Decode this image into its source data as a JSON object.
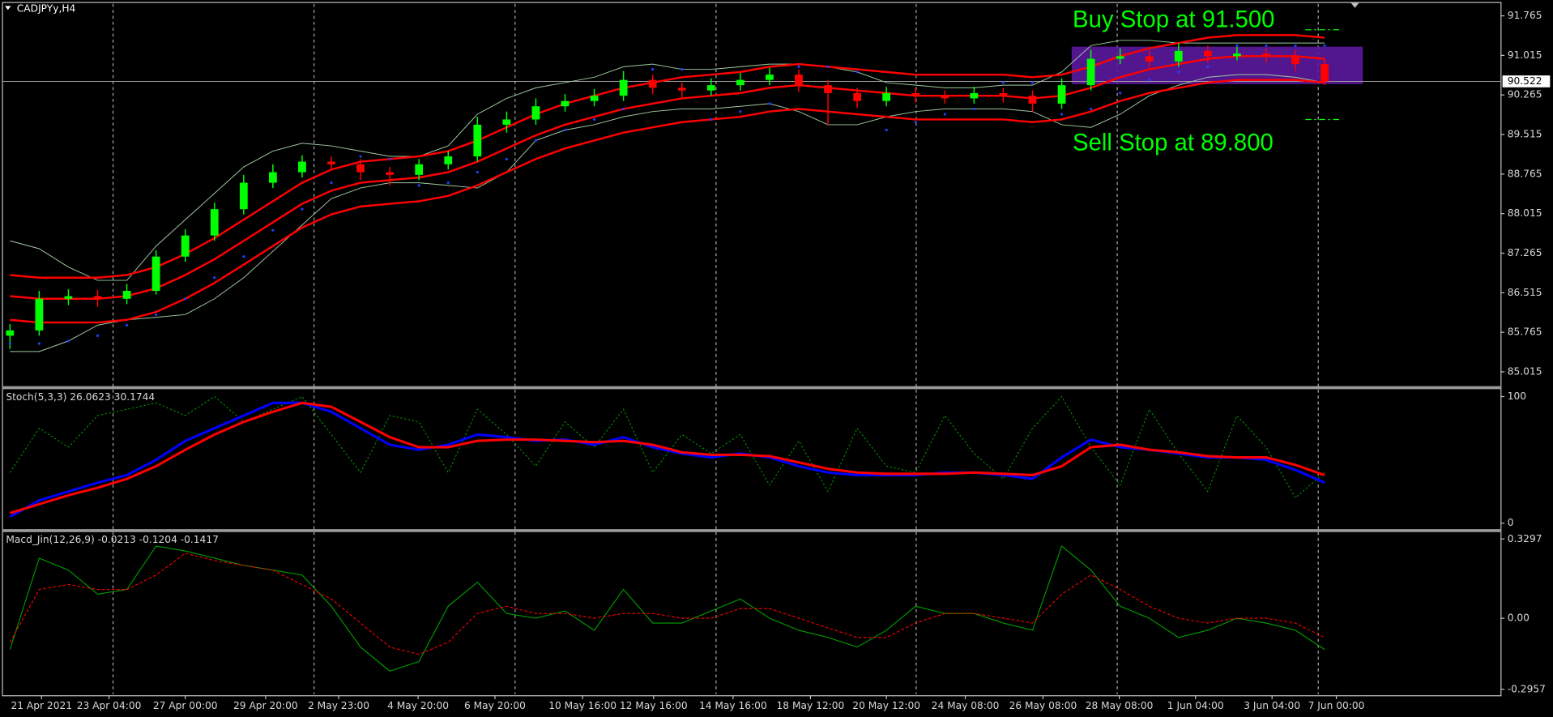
{
  "chart_data": [
    {
      "type": "candlestick",
      "title": "CADJPYy,H4",
      "xlim": [
        -0.24,
        51.02
      ],
      "ylim": [
        84.752,
        92.009
      ],
      "yticks": [
        91.765,
        91.015,
        90.265,
        89.515,
        88.765,
        88.015,
        87.265,
        86.515,
        85.765,
        85.015
      ],
      "up_color": "#00ff00",
      "down_color": "#ff0000",
      "open": [
        85.7,
        85.8,
        86.4,
        86.45,
        86.4,
        86.55,
        87.2,
        87.6,
        88.1,
        88.6,
        88.8,
        89.0,
        88.95,
        88.8,
        88.75,
        88.95,
        89.1,
        89.7,
        89.8,
        90.05,
        90.15,
        90.25,
        90.55,
        90.4,
        90.35,
        90.45,
        90.55,
        90.65,
        90.45,
        90.3,
        90.15,
        90.3,
        90.25,
        90.2,
        90.3,
        90.25,
        90.1,
        90.45,
        90.95,
        91.0,
        90.9,
        91.1,
        91.0,
        91.05,
        91.0,
        90.85
      ],
      "high": [
        85.92,
        86.55,
        86.58,
        86.57,
        86.68,
        87.32,
        87.72,
        88.22,
        88.75,
        88.95,
        89.12,
        89.1,
        89.05,
        88.9,
        89.05,
        89.2,
        89.85,
        89.95,
        90.2,
        90.28,
        90.38,
        90.72,
        90.65,
        90.5,
        90.58,
        90.68,
        90.78,
        90.75,
        90.55,
        90.4,
        90.42,
        90.4,
        90.35,
        90.42,
        90.4,
        90.35,
        90.58,
        91.12,
        91.15,
        91.1,
        91.25,
        91.2,
        91.18,
        91.15,
        91.12,
        90.95
      ],
      "low": [
        85.45,
        85.7,
        86.28,
        86.25,
        86.3,
        86.48,
        87.1,
        87.5,
        88.0,
        88.5,
        88.7,
        88.85,
        88.65,
        88.55,
        88.65,
        88.85,
        89.0,
        89.55,
        89.7,
        89.95,
        90.05,
        90.15,
        90.28,
        90.22,
        90.25,
        90.35,
        90.45,
        90.32,
        89.7,
        90.02,
        90.05,
        90.12,
        90.1,
        90.1,
        90.12,
        89.95,
        90.0,
        90.35,
        90.85,
        90.78,
        90.8,
        90.88,
        90.92,
        90.88,
        90.72,
        90.45
      ],
      "close": [
        85.8,
        86.4,
        86.45,
        86.4,
        86.55,
        87.2,
        87.6,
        88.1,
        88.6,
        88.8,
        89.0,
        88.95,
        88.8,
        88.75,
        88.95,
        89.1,
        89.7,
        89.8,
        90.05,
        90.15,
        90.25,
        90.55,
        90.4,
        90.35,
        90.45,
        90.55,
        90.65,
        90.45,
        90.3,
        90.15,
        90.3,
        90.25,
        90.2,
        90.3,
        90.25,
        90.1,
        90.45,
        90.95,
        91.0,
        90.9,
        91.1,
        91.0,
        91.05,
        91.0,
        90.85,
        90.52
      ],
      "overlays": [
        {
          "color": "#a0c8a0",
          "width": 0.8,
          "values": [
            87.5,
            87.35,
            87.0,
            86.75,
            86.75,
            87.4,
            87.9,
            88.4,
            88.9,
            89.2,
            89.35,
            89.3,
            89.2,
            89.1,
            89.1,
            89.3,
            89.9,
            90.2,
            90.4,
            90.5,
            90.6,
            90.8,
            90.85,
            90.75,
            90.75,
            90.8,
            90.85,
            90.85,
            90.8,
            90.7,
            90.5,
            90.45,
            90.4,
            90.4,
            90.45,
            90.45,
            90.7,
            91.2,
            91.3,
            91.3,
            91.25,
            91.25,
            91.25,
            91.25,
            91.25,
            91.25
          ]
        },
        {
          "color": "#a0c8a0",
          "width": 0.8,
          "values": [
            85.4,
            85.4,
            85.6,
            85.9,
            86.0,
            86.05,
            86.1,
            86.4,
            86.8,
            87.3,
            87.8,
            88.3,
            88.5,
            88.6,
            88.6,
            88.55,
            88.5,
            88.8,
            89.4,
            89.6,
            89.7,
            89.85,
            89.95,
            90.0,
            90.0,
            90.05,
            90.1,
            89.95,
            89.7,
            89.7,
            89.85,
            89.95,
            90.0,
            90.0,
            90.0,
            89.95,
            89.7,
            89.65,
            89.9,
            90.25,
            90.45,
            90.6,
            90.65,
            90.65,
            90.6,
            90.5
          ]
        },
        {
          "color": "#ff0000",
          "width": 2,
          "values": [
            86.85,
            86.8,
            86.8,
            86.8,
            86.85,
            87.0,
            87.25,
            87.55,
            87.9,
            88.25,
            88.6,
            88.85,
            89.0,
            89.05,
            89.1,
            89.2,
            89.4,
            89.65,
            89.9,
            90.1,
            90.25,
            90.4,
            90.5,
            90.6,
            90.65,
            90.7,
            90.8,
            90.85,
            90.8,
            90.75,
            90.7,
            90.65,
            90.65,
            90.65,
            90.65,
            90.6,
            90.65,
            90.8,
            91.0,
            91.15,
            91.25,
            91.35,
            91.4,
            91.4,
            91.4,
            91.35
          ]
        },
        {
          "color": "#ff0000",
          "width": 2,
          "values": [
            86.45,
            86.4,
            86.4,
            86.4,
            86.45,
            86.6,
            86.85,
            87.15,
            87.5,
            87.85,
            88.2,
            88.45,
            88.6,
            88.65,
            88.7,
            88.8,
            89.0,
            89.25,
            89.5,
            89.7,
            89.85,
            90.0,
            90.1,
            90.2,
            90.25,
            90.3,
            90.4,
            90.45,
            90.4,
            90.35,
            90.3,
            90.25,
            90.25,
            90.25,
            90.25,
            90.2,
            90.25,
            90.4,
            90.6,
            90.75,
            90.85,
            90.95,
            91.0,
            91.0,
            91.0,
            90.95
          ]
        },
        {
          "color": "#ff0000",
          "width": 2,
          "values": [
            86.0,
            85.95,
            85.95,
            85.95,
            86.0,
            86.15,
            86.4,
            86.7,
            87.05,
            87.4,
            87.75,
            88.0,
            88.15,
            88.2,
            88.25,
            88.35,
            88.55,
            88.8,
            89.05,
            89.25,
            89.4,
            89.55,
            89.65,
            89.75,
            89.8,
            89.85,
            89.95,
            90.0,
            89.95,
            89.9,
            89.85,
            89.8,
            89.8,
            89.8,
            89.8,
            89.75,
            89.8,
            89.95,
            90.15,
            90.3,
            90.4,
            90.5,
            90.55,
            90.55,
            90.55,
            90.5
          ]
        }
      ],
      "psar": {
        "color": "#2040ff",
        "values": [
          85.55,
          85.55,
          85.6,
          85.7,
          85.9,
          86.1,
          86.4,
          86.8,
          87.2,
          87.7,
          88.1,
          88.6,
          89.1,
          89.05,
          88.55,
          88.6,
          88.8,
          89.05,
          89.4,
          89.6,
          89.8,
          90.0,
          90.75,
          90.75,
          89.8,
          89.95,
          90.1,
          90.8,
          90.8,
          90.7,
          89.6,
          89.75,
          89.9,
          90.0,
          90.5,
          90.5,
          89.9,
          90.0,
          90.3,
          90.55,
          90.7,
          90.8,
          91.2,
          91.2,
          91.2,
          91.2
        ]
      },
      "zone": [
        90.47,
        91.18
      ],
      "zone_color": "#5b1a9e",
      "last_price": 90.522,
      "annotations": [
        {
          "text": "Buy Stop at 91.500",
          "value": 91.5,
          "color": "#00ff00"
        },
        {
          "text": "Sell Stop at 89.800",
          "value": 89.8,
          "color": "#00ff00"
        }
      ]
    },
    {
      "type": "stochastic",
      "title": "Stoch(5,3,3) 26.0623 30.1744",
      "xlim": [
        -0.24,
        51.02
      ],
      "ylim": [
        -4.7,
        105.5
      ],
      "yticks": [
        100,
        0
      ],
      "series": [
        {
          "color": "#00a000",
          "style": "dotted",
          "values": [
            40,
            75,
            60,
            85,
            90,
            95,
            85,
            100,
            80,
            90,
            100,
            70,
            40,
            85,
            80,
            40,
            90,
            70,
            45,
            80,
            60,
            90,
            40,
            70,
            55,
            70,
            30,
            65,
            25,
            75,
            45,
            40,
            85,
            55,
            35,
            75,
            100,
            60,
            30,
            90,
            55,
            25,
            85,
            60,
            20,
            40
          ]
        },
        {
          "color": "#0000ff",
          "style": "solid",
          "values": [
            5,
            18,
            25,
            32,
            38,
            50,
            65,
            75,
            85,
            95,
            95,
            88,
            75,
            62,
            58,
            62,
            70,
            68,
            65,
            66,
            62,
            68,
            60,
            55,
            52,
            55,
            52,
            45,
            40,
            38,
            38,
            38,
            40,
            40,
            38,
            35,
            52,
            66,
            60,
            58,
            55,
            52,
            52,
            50,
            42,
            32
          ]
        },
        {
          "color": "#ff0000",
          "style": "solid",
          "values": [
            8,
            15,
            22,
            28,
            35,
            45,
            58,
            70,
            80,
            88,
            95,
            92,
            80,
            68,
            60,
            60,
            65,
            66,
            66,
            65,
            64,
            65,
            62,
            56,
            54,
            54,
            53,
            48,
            43,
            40,
            39,
            39,
            39,
            40,
            39,
            38,
            45,
            60,
            62,
            58,
            56,
            53,
            52,
            52,
            46,
            38
          ]
        }
      ]
    },
    {
      "type": "macd",
      "title": "Macd_Jin(12,26,9) -0.0213 -0.1204 -0.1417",
      "xlim": [
        -0.24,
        51.02
      ],
      "ylim": [
        -0.3204,
        0.3585
      ],
      "yticks": [
        0.3297,
        {
          "value": 0,
          "label": "0.00"
        },
        -0.2957
      ],
      "series": [
        {
          "color": "#00a000",
          "style": "solid",
          "values": [
            -0.13,
            0.25,
            0.2,
            0.1,
            0.12,
            0.3,
            0.28,
            0.25,
            0.22,
            0.2,
            0.18,
            0.05,
            -0.12,
            -0.22,
            -0.18,
            0.05,
            0.15,
            0.02,
            0,
            0.03,
            -0.05,
            0.12,
            -0.02,
            -0.02,
            0.03,
            0.08,
            0,
            -0.05,
            -0.08,
            -0.12,
            -0.05,
            0.05,
            0.02,
            0.02,
            -0.02,
            -0.05,
            0.3,
            0.2,
            0.05,
            0,
            -0.08,
            -0.05,
            0,
            -0.02,
            -0.05,
            -0.13
          ]
        },
        {
          "color": "#ff0000",
          "style": "dotted",
          "values": [
            -0.1,
            0.12,
            0.14,
            0.12,
            0.12,
            0.18,
            0.27,
            0.24,
            0.22,
            0.2,
            0.14,
            0.08,
            -0.02,
            -0.12,
            -0.15,
            -0.1,
            0.02,
            0.05,
            0.02,
            0.02,
            0,
            0.02,
            0.02,
            0,
            0,
            0.04,
            0.04,
            0,
            -0.04,
            -0.08,
            -0.08,
            -0.02,
            0.02,
            0.02,
            0,
            -0.02,
            0.1,
            0.18,
            0.12,
            0.05,
            0,
            -0.02,
            0,
            0,
            -0.02,
            -0.08
          ]
        }
      ],
      "xticks": [
        {
          "value": 1.08,
          "label": "21 Apr 2021"
        },
        {
          "value": 3.39,
          "label": "23 Apr 04:00"
        },
        {
          "value": 6.0,
          "label": "27 Apr 00:00"
        },
        {
          "value": 8.75,
          "label": "29 Apr 20:00"
        },
        {
          "value": 11.25,
          "label": "2 May 23:00"
        },
        {
          "value": 13.97,
          "label": "4 May 20:00"
        },
        {
          "value": 16.6,
          "label": "6 May 20:00"
        },
        {
          "value": 19.6,
          "label": "10 May 16:00"
        },
        {
          "value": 22.03,
          "label": "12 May 16:00"
        },
        {
          "value": 24.75,
          "label": "14 May 16:00"
        },
        {
          "value": 27.4,
          "label": "18 May 12:00"
        },
        {
          "value": 30.0,
          "label": "20 May 12:00"
        },
        {
          "value": 32.7,
          "label": "24 May 08:00"
        },
        {
          "value": 35.36,
          "label": "26 May 08:00"
        },
        {
          "value": 37.97,
          "label": "28 May 08:00"
        },
        {
          "value": 40.58,
          "label": "1 Jun 04:00"
        },
        {
          "value": 43.2,
          "label": "3 Jun 04:00"
        },
        {
          "value": 45.4,
          "label": "7 Jun 00:00"
        }
      ],
      "vgrid": [
        3.53,
        10.41,
        17.29,
        24.17,
        31.02,
        37.9,
        44.78
      ]
    }
  ]
}
